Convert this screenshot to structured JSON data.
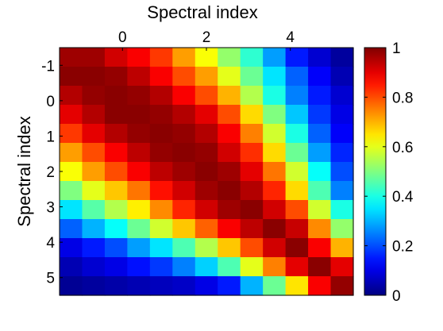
{
  "chart_data": {
    "type": "heatmap",
    "title": "",
    "xlabel": "Spectral index",
    "ylabel": "Spectral index",
    "x_range": [
      -1.5,
      5.5
    ],
    "y_range": [
      -1.5,
      5.5
    ],
    "x_ticks": [
      0,
      2,
      4
    ],
    "y_ticks": [
      -1,
      0,
      1,
      2,
      3,
      4,
      5
    ],
    "x_tick_labels": [
      "0",
      "2",
      "4"
    ],
    "y_tick_labels": [
      "-1",
      "0",
      "1",
      "2",
      "3",
      "4",
      "5"
    ],
    "x_axis_position": "top",
    "y_axis_direction": "down",
    "colormap": "jet",
    "clim": [
      0,
      1
    ],
    "colorbar": {
      "position": "right",
      "ticks": [
        0,
        0.2,
        0.4,
        0.6,
        0.8,
        1
      ],
      "tick_labels": [
        "0",
        "0.2",
        "0.4",
        "0.6",
        "0.8",
        "1"
      ]
    },
    "grid": false,
    "rows": 13,
    "cols": 13,
    "values": [
      [
        0.97,
        0.97,
        0.92,
        0.88,
        0.82,
        0.72,
        0.62,
        0.52,
        0.42,
        0.28,
        0.15,
        0.08,
        0.03
      ],
      [
        0.99,
        0.99,
        0.98,
        0.94,
        0.88,
        0.8,
        0.72,
        0.6,
        0.48,
        0.35,
        0.22,
        0.12,
        0.05
      ],
      [
        0.95,
        0.98,
        0.99,
        0.98,
        0.95,
        0.88,
        0.8,
        0.7,
        0.55,
        0.4,
        0.25,
        0.15,
        0.08
      ],
      [
        0.9,
        0.95,
        0.99,
        0.99,
        0.98,
        0.95,
        0.9,
        0.8,
        0.66,
        0.5,
        0.32,
        0.18,
        0.1
      ],
      [
        0.82,
        0.9,
        0.95,
        0.98,
        0.99,
        0.98,
        0.95,
        0.88,
        0.75,
        0.58,
        0.4,
        0.22,
        0.12
      ],
      [
        0.72,
        0.8,
        0.88,
        0.94,
        0.98,
        0.99,
        0.98,
        0.92,
        0.83,
        0.66,
        0.48,
        0.28,
        0.16
      ],
      [
        0.62,
        0.72,
        0.8,
        0.88,
        0.94,
        0.97,
        0.99,
        0.97,
        0.9,
        0.76,
        0.58,
        0.38,
        0.2
      ],
      [
        0.5,
        0.6,
        0.68,
        0.76,
        0.86,
        0.92,
        0.97,
        0.99,
        0.95,
        0.84,
        0.66,
        0.45,
        0.25
      ],
      [
        0.35,
        0.46,
        0.55,
        0.64,
        0.74,
        0.84,
        0.92,
        0.97,
        0.99,
        0.92,
        0.8,
        0.58,
        0.4
      ],
      [
        0.22,
        0.3,
        0.38,
        0.48,
        0.58,
        0.68,
        0.78,
        0.88,
        0.94,
        0.99,
        0.93,
        0.74,
        0.52
      ],
      [
        0.1,
        0.15,
        0.2,
        0.28,
        0.35,
        0.45,
        0.55,
        0.68,
        0.8,
        0.92,
        0.99,
        0.88,
        0.7
      ],
      [
        0.05,
        0.08,
        0.1,
        0.14,
        0.18,
        0.25,
        0.33,
        0.45,
        0.6,
        0.75,
        0.9,
        0.99,
        0.9
      ],
      [
        0.02,
        0.03,
        0.04,
        0.05,
        0.06,
        0.07,
        0.1,
        0.15,
        0.3,
        0.48,
        0.65,
        0.88,
        0.98
      ]
    ]
  }
}
